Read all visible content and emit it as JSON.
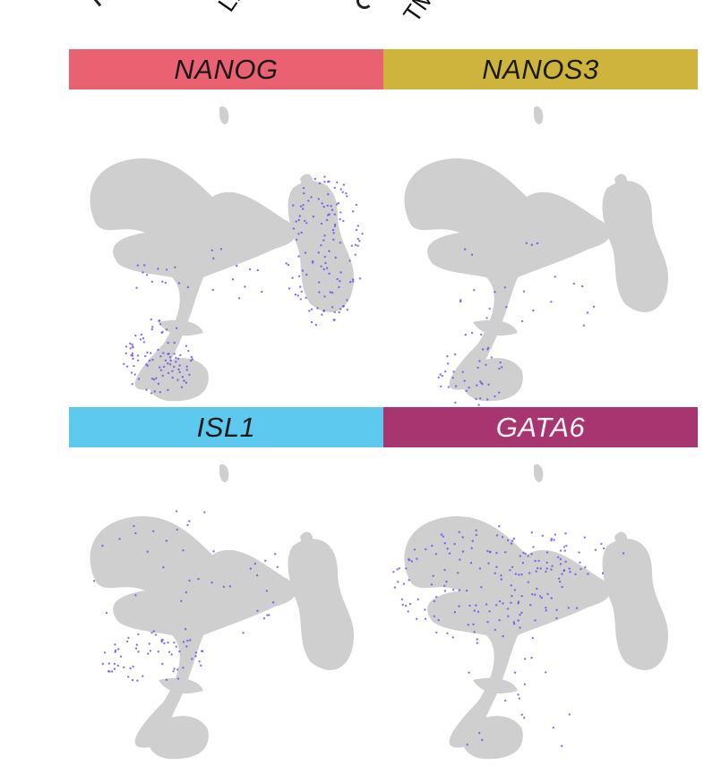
{
  "top_labels": [
    {
      "text": "Li"
    },
    {
      "text": "TM"
    }
  ],
  "panels": [
    {
      "label": "NANOG",
      "band_color": "#ea6272",
      "text_color": "#1a1a1a",
      "expression": "nanog"
    },
    {
      "label": "NANOS3",
      "band_color": "#cdb43d",
      "text_color": "#1a1a1a",
      "expression": "nanos3"
    },
    {
      "label": "ISL1",
      "band_color": "#5ec9ee",
      "text_color": "#1a1a1a",
      "expression": "isl1"
    },
    {
      "label": "GATA6",
      "band_color": "#a73570",
      "text_color": "#f3f3f3",
      "expression": "gata6"
    }
  ],
  "colors": {
    "cells": "#cfcfcf",
    "expressed": "#6a3ff0"
  }
}
